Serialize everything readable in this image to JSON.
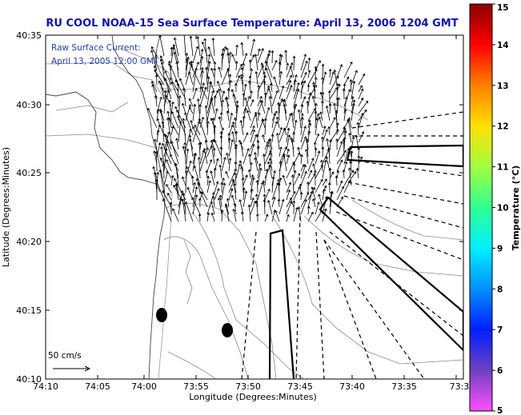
{
  "title": "RU COOL  NOAA-15  Sea Surface Temperature:  April 13, 2006 1204 GMT",
  "legend": {
    "line1": "Raw Surface Current:",
    "line2": "April 13, 2005 12:00 GMT"
  },
  "axes": {
    "xlabel": "Longitude (Degrees:Minutes)",
    "ylabel": "Latitude (Degrees:Minutes)",
    "x_ticks": [
      "74:10",
      "74:05",
      "74:00",
      "73:55",
      "73:50",
      "73:45",
      "73:40",
      "73:35",
      "73:3"
    ],
    "y_ticks": [
      "40:35",
      "40:30",
      "40:25",
      "40:20",
      "40:15",
      "40:10"
    ]
  },
  "scale_bar": {
    "label": "50 cm/s"
  },
  "colorbar": {
    "label": "Temperature (°C)",
    "ticks": [
      "15",
      "14",
      "13",
      "12",
      "11",
      "10",
      "9",
      "8",
      "7",
      "6",
      "5"
    ],
    "colors": [
      "#b00000",
      "#ff0000",
      "#ff7f00",
      "#ffe000",
      "#b0ff40",
      "#30ff90",
      "#00f0ff",
      "#00a0ff",
      "#0030ff",
      "#6a3ac0",
      "#ff40ff"
    ]
  },
  "markers": [
    {
      "name": "station-1",
      "lon": "73:58.8",
      "lat": "40:14.6"
    },
    {
      "name": "station-2",
      "lon": "73:52.3",
      "lat": "40:13.5"
    }
  ],
  "colors": {
    "title": "#1010c0",
    "legend_text": "#1f3fbf",
    "arrows": "#000000",
    "contours": "#8a8a8a"
  }
}
